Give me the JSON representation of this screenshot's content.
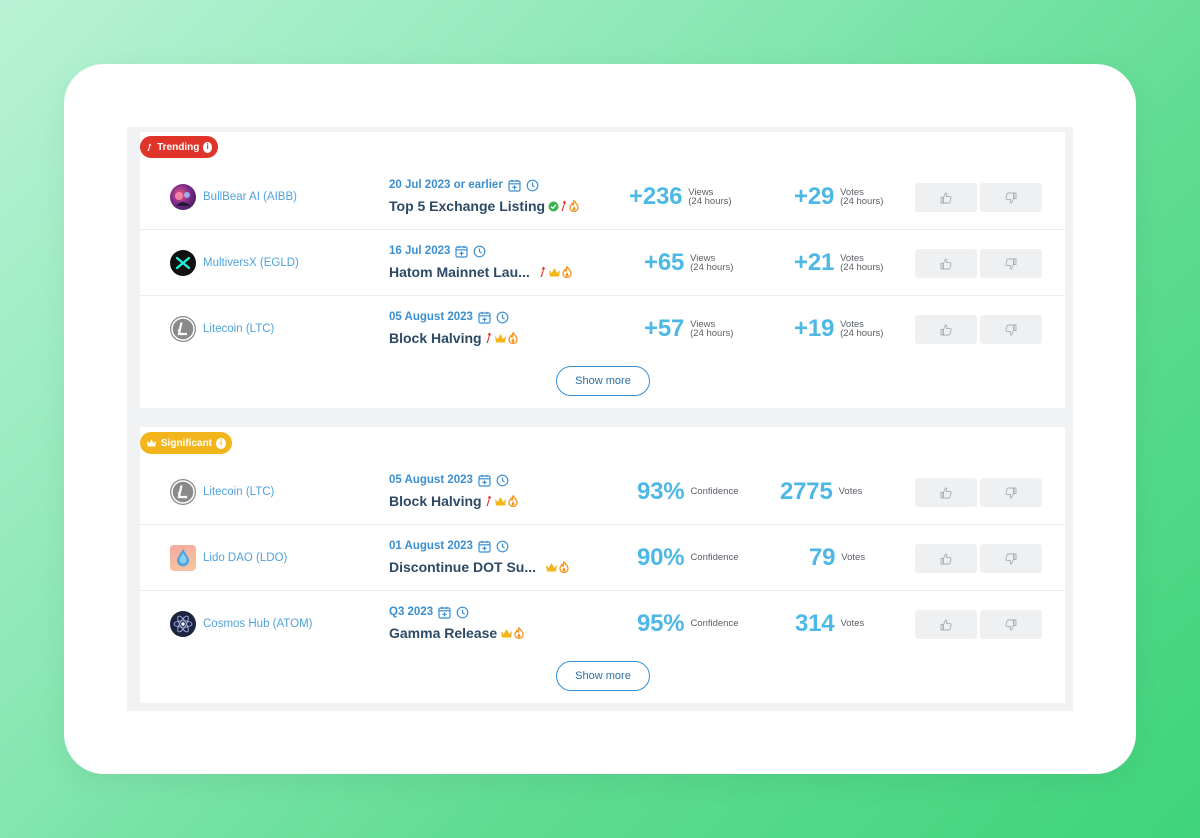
{
  "trending": {
    "badge": "Trending",
    "show_more": "Show more",
    "rows": [
      {
        "coin": "BullBear AI (AIBB)",
        "date": "20 Jul 2023 or earlier",
        "title": "Top 5 Exchange Listing",
        "views": "+236",
        "votes": "+29",
        "views_label_1": "Views",
        "views_label_2": "(24 hours)",
        "votes_label_1": "Votes",
        "votes_label_2": "(24 hours)"
      },
      {
        "coin": "MultiversX (EGLD)",
        "date": "16 Jul 2023",
        "title": "Hatom Mainnet Lau...",
        "views": "+65",
        "votes": "+21",
        "views_label_1": "Views",
        "views_label_2": "(24 hours)",
        "votes_label_1": "Votes",
        "votes_label_2": "(24 hours)"
      },
      {
        "coin": "Litecoin (LTC)",
        "date": "05 August 2023",
        "title": "Block Halving",
        "views": "+57",
        "votes": "+19",
        "views_label_1": "Views",
        "views_label_2": "(24 hours)",
        "votes_label_1": "Votes",
        "votes_label_2": "(24 hours)"
      }
    ]
  },
  "significant": {
    "badge": "Significant",
    "show_more": "Show more",
    "rows": [
      {
        "coin": "Litecoin (LTC)",
        "date": "05 August 2023",
        "title": "Block Halving",
        "confidence": "93%",
        "confidence_label": "Confidence",
        "votes": "2775",
        "votes_label": "Votes"
      },
      {
        "coin": "Lido DAO (LDO)",
        "date": "01 August 2023",
        "title": "Discontinue DOT Su...",
        "confidence": "90%",
        "confidence_label": "Confidence",
        "votes": "79",
        "votes_label": "Votes"
      },
      {
        "coin": "Cosmos Hub (ATOM)",
        "date": "Q3 2023",
        "title": "Gamma Release",
        "confidence": "95%",
        "confidence_label": "Confidence",
        "votes": "314",
        "votes_label": "Votes"
      }
    ]
  },
  "colors": {
    "accent_blue": "#4db8e6",
    "link_blue": "#4fa3d9",
    "trending_red": "#e0342b",
    "significant_yellow": "#f2b51c",
    "title_navy": "#2c4a66"
  },
  "icons": {
    "trending": "arrow-up-icon",
    "info": "info-icon",
    "calendar": "calendar-plus-icon",
    "clock": "clock-icon",
    "verified": "check-circle-icon",
    "crown": "crown-icon",
    "fire": "fire-icon",
    "thumbs_up": "thumbs-up-icon",
    "thumbs_down": "thumbs-down-icon"
  }
}
